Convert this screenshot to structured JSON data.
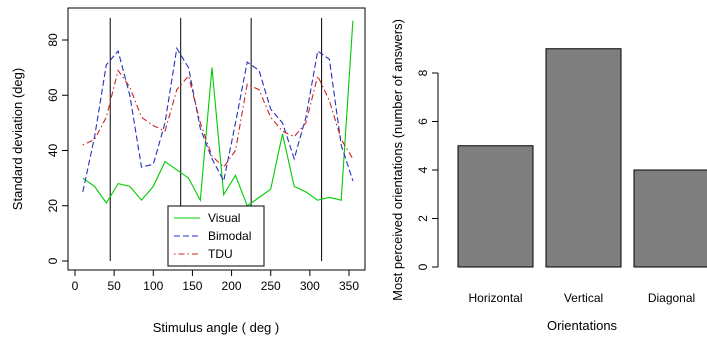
{
  "chart_data": [
    {
      "type": "line",
      "xlabel": "Stimulus angle  ( deg )",
      "ylabel": "Standard deviation (deg)",
      "xlim": [
        0,
        360
      ],
      "ylim": [
        -2,
        88
      ],
      "xticks": [
        0,
        50,
        100,
        150,
        200,
        250,
        300,
        350
      ],
      "yticks": [
        0,
        20,
        40,
        60,
        80
      ],
      "vlines": [
        45,
        135,
        225,
        315
      ],
      "legend_position": "bottom-center",
      "x": [
        10,
        25,
        40,
        55,
        70,
        85,
        100,
        115,
        130,
        145,
        160,
        175,
        190,
        205,
        220,
        235,
        250,
        265,
        280,
        295,
        310,
        325,
        340,
        355
      ],
      "series": [
        {
          "name": "Visual",
          "color": "#00cc00",
          "dash": "solid",
          "values": [
            30,
            27,
            21,
            28,
            27,
            22,
            27,
            36,
            33,
            30,
            22,
            70,
            24,
            31,
            20,
            23,
            26,
            46,
            27,
            25,
            22,
            23,
            22,
            87
          ]
        },
        {
          "name": "Bimodal",
          "color": "#2233bb",
          "dash": "dashed",
          "values": [
            25,
            45,
            71,
            76,
            60,
            34,
            35,
            50,
            77,
            70,
            48,
            37,
            29,
            50,
            72,
            69,
            55,
            50,
            37,
            52,
            76,
            73,
            42,
            29
          ]
        },
        {
          "name": "TDU",
          "color": "#cc2222",
          "dash": "dotdash",
          "values": [
            42,
            44,
            52,
            69,
            63,
            52,
            49,
            47,
            62,
            67,
            50,
            38,
            34,
            40,
            64,
            62,
            52,
            47,
            45,
            50,
            67,
            58,
            44,
            37
          ]
        }
      ]
    },
    {
      "type": "bar",
      "xlabel": "Orientations",
      "ylabel": "Most perceived orientations (number of answers)",
      "categories": [
        "Horizontal",
        "Vertical",
        "Diagonal"
      ],
      "values": [
        5,
        9,
        4
      ],
      "ylim": [
        0,
        10
      ],
      "yticks": [
        0,
        2,
        4,
        6,
        8
      ],
      "bar_color": "#7f7f7f"
    }
  ]
}
